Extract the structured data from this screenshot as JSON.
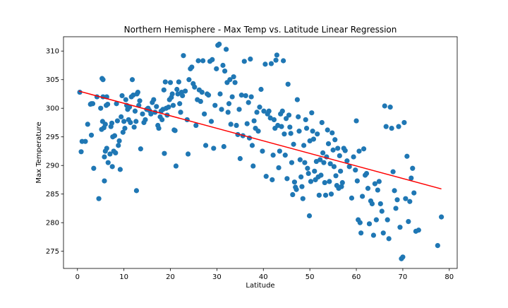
{
  "chart_data": {
    "type": "scatter",
    "title": "Northern Hemisphere - Max Temp vs. Latitude Linear Regression",
    "xlabel": "Latitude",
    "ylabel": "Max Temperature",
    "xlim": [
      -3,
      81.7
    ],
    "ylim": [
      272,
      312.5
    ],
    "xticks": [
      0,
      10,
      20,
      30,
      40,
      50,
      60,
      70,
      80
    ],
    "yticks": [
      275,
      280,
      285,
      290,
      295,
      300,
      305,
      310
    ],
    "grid": false,
    "point_color": "#1f77b4",
    "line_color": "#ff0000",
    "regression": {
      "x": [
        0.3,
        78.3
      ],
      "y": [
        303.0,
        285.9
      ]
    },
    "points": [
      [
        0.5,
        302.8
      ],
      [
        0.8,
        292.4
      ],
      [
        1.0,
        294.2
      ],
      [
        1.7,
        294.2
      ],
      [
        2.2,
        297.2
      ],
      [
        2.8,
        300.7
      ],
      [
        3.0,
        300.8
      ],
      [
        3.3,
        300.8
      ],
      [
        3.0,
        295.3
      ],
      [
        3.5,
        289.5
      ],
      [
        4.2,
        302.0
      ],
      [
        4.6,
        284.2
      ],
      [
        5.0,
        300.0
      ],
      [
        5.3,
        305.2
      ],
      [
        5.5,
        305.0
      ],
      [
        5.5,
        302.0
      ],
      [
        5.2,
        296.3
      ],
      [
        5.4,
        297.7
      ],
      [
        5.7,
        296.6
      ],
      [
        5.8,
        291.5
      ],
      [
        6.0,
        292.5
      ],
      [
        5.8,
        287.3
      ],
      [
        6.0,
        297.2
      ],
      [
        6.2,
        300.5
      ],
      [
        6.3,
        302.0
      ],
      [
        6.5,
        300.7
      ],
      [
        6.3,
        293.0
      ],
      [
        6.6,
        290.5
      ],
      [
        7.0,
        292.0
      ],
      [
        7.2,
        296.8
      ],
      [
        7.4,
        297.4
      ],
      [
        7.6,
        295.0
      ],
      [
        7.8,
        292.5
      ],
      [
        7.5,
        289.8
      ],
      [
        8.0,
        295.2
      ],
      [
        8.2,
        292.2
      ],
      [
        8.4,
        300.8
      ],
      [
        8.6,
        297.8
      ],
      [
        8.8,
        293.5
      ],
      [
        9.0,
        294.3
      ],
      [
        9.2,
        289.3
      ],
      [
        9.4,
        298.5
      ],
      [
        9.6,
        302.2
      ],
      [
        9.8,
        295.8
      ],
      [
        10.0,
        297.7
      ],
      [
        10.2,
        296.5
      ],
      [
        10.4,
        301.5
      ],
      [
        10.6,
        300.5
      ],
      [
        10.8,
        299.8
      ],
      [
        11.0,
        298.0
      ],
      [
        11.2,
        300.2
      ],
      [
        11.4,
        297.5
      ],
      [
        11.6,
        302.0
      ],
      [
        11.8,
        305.0
      ],
      [
        12.0,
        302.3
      ],
      [
        12.2,
        296.7
      ],
      [
        12.4,
        299.5
      ],
      [
        12.6,
        297.7
      ],
      [
        12.8,
        302.5
      ],
      [
        13.0,
        302.8
      ],
      [
        12.7,
        285.6
      ],
      [
        13.2,
        300.5
      ],
      [
        13.4,
        301.3
      ],
      [
        13.6,
        292.9
      ],
      [
        14.0,
        299.0
      ],
      [
        14.3,
        297.5
      ],
      [
        14.6,
        298.0
      ],
      [
        14.9,
        299.8
      ],
      [
        15.2,
        300.0
      ],
      [
        15.5,
        299.6
      ],
      [
        15.8,
        299.0
      ],
      [
        16.1,
        301.0
      ],
      [
        16.4,
        301.5
      ],
      [
        16.7,
        299.3
      ],
      [
        17.0,
        300.3
      ],
      [
        17.3,
        297.0
      ],
      [
        17.5,
        296.5
      ],
      [
        17.8,
        298.5
      ],
      [
        18.0,
        299.5
      ],
      [
        18.2,
        298.0
      ],
      [
        18.4,
        299.8
      ],
      [
        18.6,
        303.2
      ],
      [
        18.7,
        292.1
      ],
      [
        18.9,
        304.6
      ],
      [
        19.1,
        300.0
      ],
      [
        19.3,
        298.8
      ],
      [
        19.6,
        300.2
      ],
      [
        19.8,
        301.5
      ],
      [
        20.0,
        304.5
      ],
      [
        20.2,
        301.9
      ],
      [
        20.4,
        302.5
      ],
      [
        20.6,
        300.5
      ],
      [
        20.8,
        296.2
      ],
      [
        21.0,
        296.1
      ],
      [
        21.2,
        289.9
      ],
      [
        21.4,
        303.3
      ],
      [
        21.6,
        302.5
      ],
      [
        21.8,
        304.6
      ],
      [
        22.0,
        300.8
      ],
      [
        22.2,
        299.3
      ],
      [
        22.4,
        302.8
      ],
      [
        22.6,
        302.2
      ],
      [
        22.8,
        309.2
      ],
      [
        23.2,
        303.0
      ],
      [
        23.6,
        298.0
      ],
      [
        23.8,
        292.0
      ],
      [
        24.0,
        305.0
      ],
      [
        24.3,
        306.9
      ],
      [
        24.6,
        307.2
      ],
      [
        24.9,
        304.3
      ],
      [
        25.2,
        303.7
      ],
      [
        25.5,
        297.0
      ],
      [
        25.8,
        301.5
      ],
      [
        26.0,
        308.3
      ],
      [
        26.2,
        303.2
      ],
      [
        26.5,
        301.2
      ],
      [
        26.8,
        302.8
      ],
      [
        27.0,
        308.3
      ],
      [
        27.3,
        299.0
      ],
      [
        27.6,
        293.5
      ],
      [
        27.9,
        302.5
      ],
      [
        28.2,
        302.3
      ],
      [
        28.5,
        308.2
      ],
      [
        28.8,
        297.7
      ],
      [
        29.0,
        308.5
      ],
      [
        29.3,
        293.0
      ],
      [
        29.6,
        300.5
      ],
      [
        29.9,
        306.9
      ],
      [
        30.2,
        311.0
      ],
      [
        30.5,
        311.2
      ],
      [
        30.7,
        302.5
      ],
      [
        31.0,
        299.8
      ],
      [
        31.3,
        307.5
      ],
      [
        31.5,
        293.3
      ],
      [
        31.7,
        306.5
      ],
      [
        32.0,
        310.3
      ],
      [
        32.2,
        304.5
      ],
      [
        32.4,
        299.3
      ],
      [
        32.6,
        300.8
      ],
      [
        32.8,
        305.0
      ],
      [
        33.0,
        297.2
      ],
      [
        33.3,
        302.0
      ],
      [
        33.6,
        305.5
      ],
      [
        33.9,
        304.5
      ],
      [
        34.2,
        297.0
      ],
      [
        34.5,
        295.4
      ],
      [
        34.8,
        299.8
      ],
      [
        35.0,
        291.2
      ],
      [
        35.3,
        302.3
      ],
      [
        35.6,
        295.2
      ],
      [
        35.9,
        308.2
      ],
      [
        36.2,
        302.2
      ],
      [
        36.5,
        297.3
      ],
      [
        36.8,
        301.0
      ],
      [
        37.0,
        294.8
      ],
      [
        37.2,
        308.6
      ],
      [
        37.4,
        302.0
      ],
      [
        37.6,
        293.5
      ],
      [
        37.8,
        289.9
      ],
      [
        38.0,
        297.8
      ],
      [
        38.3,
        296.5
      ],
      [
        38.6,
        299.3
      ],
      [
        38.9,
        296.0
      ],
      [
        39.2,
        300.2
      ],
      [
        39.5,
        303.3
      ],
      [
        39.8,
        292.5
      ],
      [
        40.1,
        299.5
      ],
      [
        40.4,
        307.7
      ],
      [
        40.6,
        288.1
      ],
      [
        40.9,
        299.0
      ],
      [
        41.2,
        299.5
      ],
      [
        41.5,
        298.3
      ],
      [
        41.7,
        307.8
      ],
      [
        41.9,
        287.5
      ],
      [
        42.1,
        291.8
      ],
      [
        42.3,
        298.0
      ],
      [
        42.5,
        296.5
      ],
      [
        42.7,
        308.4
      ],
      [
        42.9,
        309.3
      ],
      [
        43.1,
        297.0
      ],
      [
        43.3,
        289.6
      ],
      [
        43.5,
        292.5
      ],
      [
        43.7,
        299.0
      ],
      [
        43.9,
        296.8
      ],
      [
        44.1,
        299.5
      ],
      [
        44.3,
        308.3
      ],
      [
        44.5,
        295.5
      ],
      [
        44.7,
        291.8
      ],
      [
        44.9,
        298.2
      ],
      [
        45.1,
        287.7
      ],
      [
        45.3,
        304.2
      ],
      [
        45.5,
        298.8
      ],
      [
        45.7,
        296.7
      ],
      [
        45.9,
        295.6
      ],
      [
        46.1,
        290.5
      ],
      [
        46.3,
        284.9
      ],
      [
        46.5,
        293.7
      ],
      [
        46.7,
        287.1
      ],
      [
        46.9,
        286.2
      ],
      [
        47.1,
        285.8
      ],
      [
        47.3,
        301.5
      ],
      [
        47.5,
        298.5
      ],
      [
        47.7,
        296.0
      ],
      [
        47.9,
        291.0
      ],
      [
        48.1,
        288.0
      ],
      [
        48.3,
        286.3
      ],
      [
        48.5,
        284.2
      ],
      [
        48.7,
        293.5
      ],
      [
        48.9,
        290.5
      ],
      [
        49.1,
        298.0
      ],
      [
        49.3,
        296.5
      ],
      [
        49.5,
        289.5
      ],
      [
        49.7,
        288.6
      ],
      [
        49.9,
        281.2
      ],
      [
        50.0,
        294.3
      ],
      [
        50.2,
        287.2
      ],
      [
        50.4,
        299.2
      ],
      [
        50.6,
        296.0
      ],
      [
        50.8,
        294.6
      ],
      [
        51.0,
        289.0
      ],
      [
        51.2,
        287.5
      ],
      [
        51.4,
        290.7
      ],
      [
        51.6,
        295.5
      ],
      [
        51.8,
        288.0
      ],
      [
        52.0,
        284.8
      ],
      [
        52.2,
        291.0
      ],
      [
        52.4,
        288.3
      ],
      [
        52.6,
        297.5
      ],
      [
        52.8,
        292.2
      ],
      [
        53.0,
        290.5
      ],
      [
        53.2,
        287.0
      ],
      [
        53.4,
        284.8
      ],
      [
        53.6,
        291.5
      ],
      [
        53.8,
        296.2
      ],
      [
        54.0,
        293.8
      ],
      [
        54.2,
        287.2
      ],
      [
        54.4,
        290.3
      ],
      [
        54.6,
        285.0
      ],
      [
        54.8,
        295.7
      ],
      [
        55.0,
        292.7
      ],
      [
        55.2,
        289.8
      ],
      [
        55.4,
        294.5
      ],
      [
        55.6,
        288.2
      ],
      [
        55.8,
        286.5
      ],
      [
        56.0,
        293.0
      ],
      [
        56.2,
        286.0
      ],
      [
        56.4,
        291.7
      ],
      [
        56.6,
        289.0
      ],
      [
        56.8,
        286.3
      ],
      [
        57.0,
        287.0
      ],
      [
        57.3,
        293.0
      ],
      [
        57.6,
        292.6
      ],
      [
        58.0,
        290.8
      ],
      [
        58.5,
        289.8
      ],
      [
        59.0,
        284.3
      ],
      [
        59.4,
        291.5
      ],
      [
        59.8,
        289.2
      ],
      [
        60.0,
        297.8
      ],
      [
        60.2,
        287.3
      ],
      [
        60.4,
        280.5
      ],
      [
        60.6,
        292.5
      ],
      [
        60.8,
        280.0
      ],
      [
        61.0,
        278.2
      ],
      [
        61.3,
        284.6
      ],
      [
        61.6,
        292.9
      ],
      [
        61.9,
        288.3
      ],
      [
        62.2,
        288.6
      ],
      [
        62.5,
        286.0
      ],
      [
        62.8,
        279.8
      ],
      [
        63.1,
        283.8
      ],
      [
        63.4,
        283.3
      ],
      [
        63.7,
        277.8
      ],
      [
        64.0,
        286.8
      ],
      [
        64.3,
        280.5
      ],
      [
        64.6,
        285.7
      ],
      [
        64.9,
        287.2
      ],
      [
        65.2,
        283.3
      ],
      [
        65.5,
        282.0
      ],
      [
        65.8,
        278.2
      ],
      [
        66.1,
        300.4
      ],
      [
        66.4,
        296.8
      ],
      [
        66.7,
        280.5
      ],
      [
        67.0,
        277.2
      ],
      [
        67.3,
        300.2
      ],
      [
        67.6,
        296.5
      ],
      [
        67.9,
        288.9
      ],
      [
        68.2,
        285.6
      ],
      [
        68.5,
        282.5
      ],
      [
        68.8,
        284.0
      ],
      [
        69.1,
        296.8
      ],
      [
        69.4,
        279.2
      ],
      [
        69.7,
        273.7
      ],
      [
        70.0,
        274.0
      ],
      [
        70.3,
        297.5
      ],
      [
        70.6,
        284.2
      ],
      [
        70.9,
        291.6
      ],
      [
        71.2,
        280.2
      ],
      [
        71.5,
        283.7
      ],
      [
        71.8,
        287.8
      ],
      [
        72.1,
        289.5
      ],
      [
        72.4,
        285.2
      ],
      [
        72.8,
        278.5
      ],
      [
        73.4,
        278.7
      ],
      [
        77.5,
        276.0
      ],
      [
        78.3,
        281.0
      ]
    ]
  }
}
